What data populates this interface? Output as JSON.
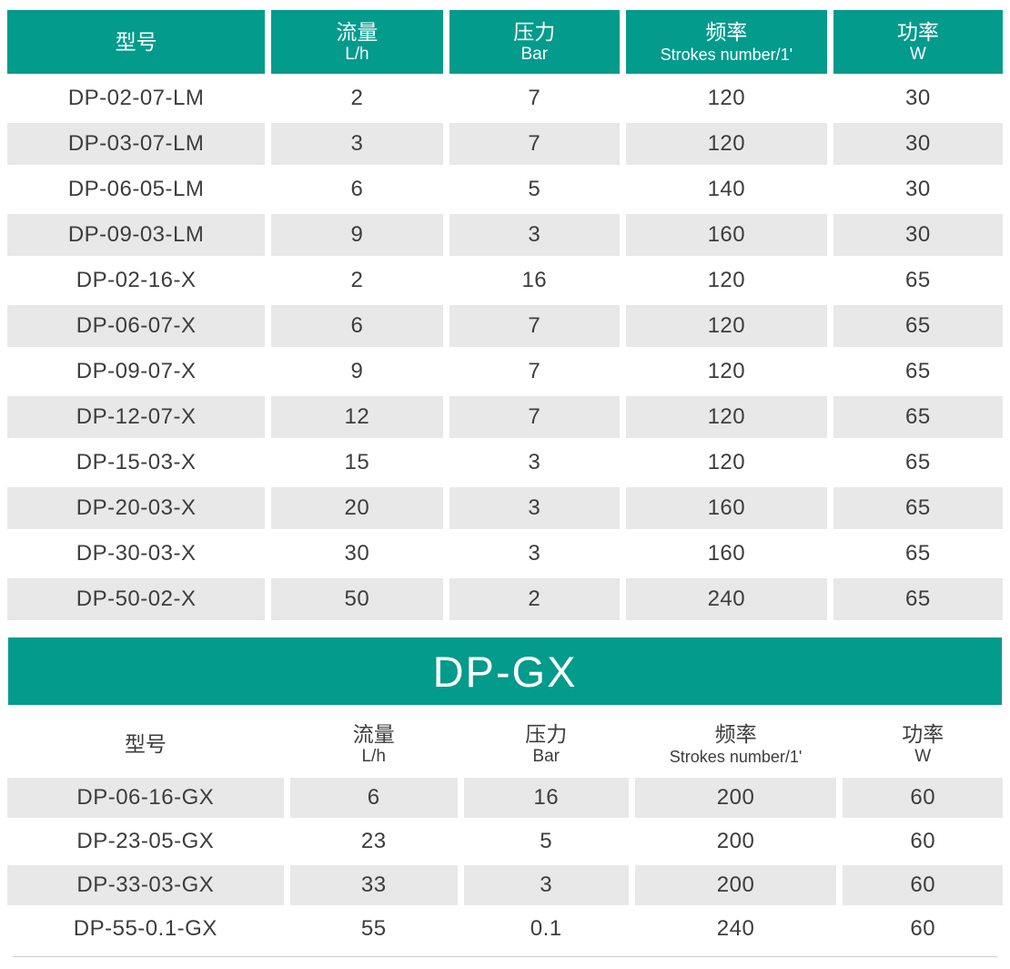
{
  "colors": {
    "teal": "#029b8c",
    "row_gray": "#e8e8e8",
    "text": "#3d3d3d",
    "header_text": "#ffffff",
    "divider": "#cccccc"
  },
  "banner": {
    "title": "DP-GX"
  },
  "tables": [
    {
      "name": "dp-lm-x-spec-table",
      "header_style": "teal",
      "gray_rows": "odd",
      "columns": [
        {
          "key": "model",
          "zh": "型号",
          "en": ""
        },
        {
          "key": "flow",
          "zh": "流量",
          "en": "L/h"
        },
        {
          "key": "pressure",
          "zh": "压力",
          "en": "Bar"
        },
        {
          "key": "frequency",
          "zh": "频率",
          "en": "Strokes number/1'"
        },
        {
          "key": "power",
          "zh": "功率",
          "en": "W"
        }
      ],
      "rows": [
        [
          "DP-02-07-LM",
          "2",
          "7",
          "120",
          "30"
        ],
        [
          "DP-03-07-LM",
          "3",
          "7",
          "120",
          "30"
        ],
        [
          "DP-06-05-LM",
          "6",
          "5",
          "140",
          "30"
        ],
        [
          "DP-09-03-LM",
          "9",
          "3",
          "160",
          "30"
        ],
        [
          "DP-02-16-X",
          "2",
          "16",
          "120",
          "65"
        ],
        [
          "DP-06-07-X",
          "6",
          "7",
          "120",
          "65"
        ],
        [
          "DP-09-07-X",
          "9",
          "7",
          "120",
          "65"
        ],
        [
          "DP-12-07-X",
          "12",
          "7",
          "120",
          "65"
        ],
        [
          "DP-15-03-X",
          "15",
          "3",
          "120",
          "65"
        ],
        [
          "DP-20-03-X",
          "20",
          "3",
          "160",
          "65"
        ],
        [
          "DP-30-03-X",
          "30",
          "3",
          "160",
          "65"
        ],
        [
          "DP-50-02-X",
          "50",
          "2",
          "240",
          "65"
        ]
      ]
    },
    {
      "name": "dp-gx-spec-table",
      "header_style": "plain",
      "gray_rows": "even",
      "columns": [
        {
          "key": "model",
          "zh": "型号",
          "en": ""
        },
        {
          "key": "flow",
          "zh": "流量",
          "en": "L/h"
        },
        {
          "key": "pressure",
          "zh": "压力",
          "en": "Bar"
        },
        {
          "key": "frequency",
          "zh": "频率",
          "en": "Strokes number/1'"
        },
        {
          "key": "power",
          "zh": "功率",
          "en": "W"
        }
      ],
      "rows": [
        [
          "DP-06-16-GX",
          "6",
          "16",
          "200",
          "60"
        ],
        [
          "DP-23-05-GX",
          "23",
          "5",
          "200",
          "60"
        ],
        [
          "DP-33-03-GX",
          "33",
          "3",
          "200",
          "60"
        ],
        [
          "DP-55-0.1-GX",
          "55",
          "0.1",
          "240",
          "60"
        ]
      ]
    }
  ]
}
